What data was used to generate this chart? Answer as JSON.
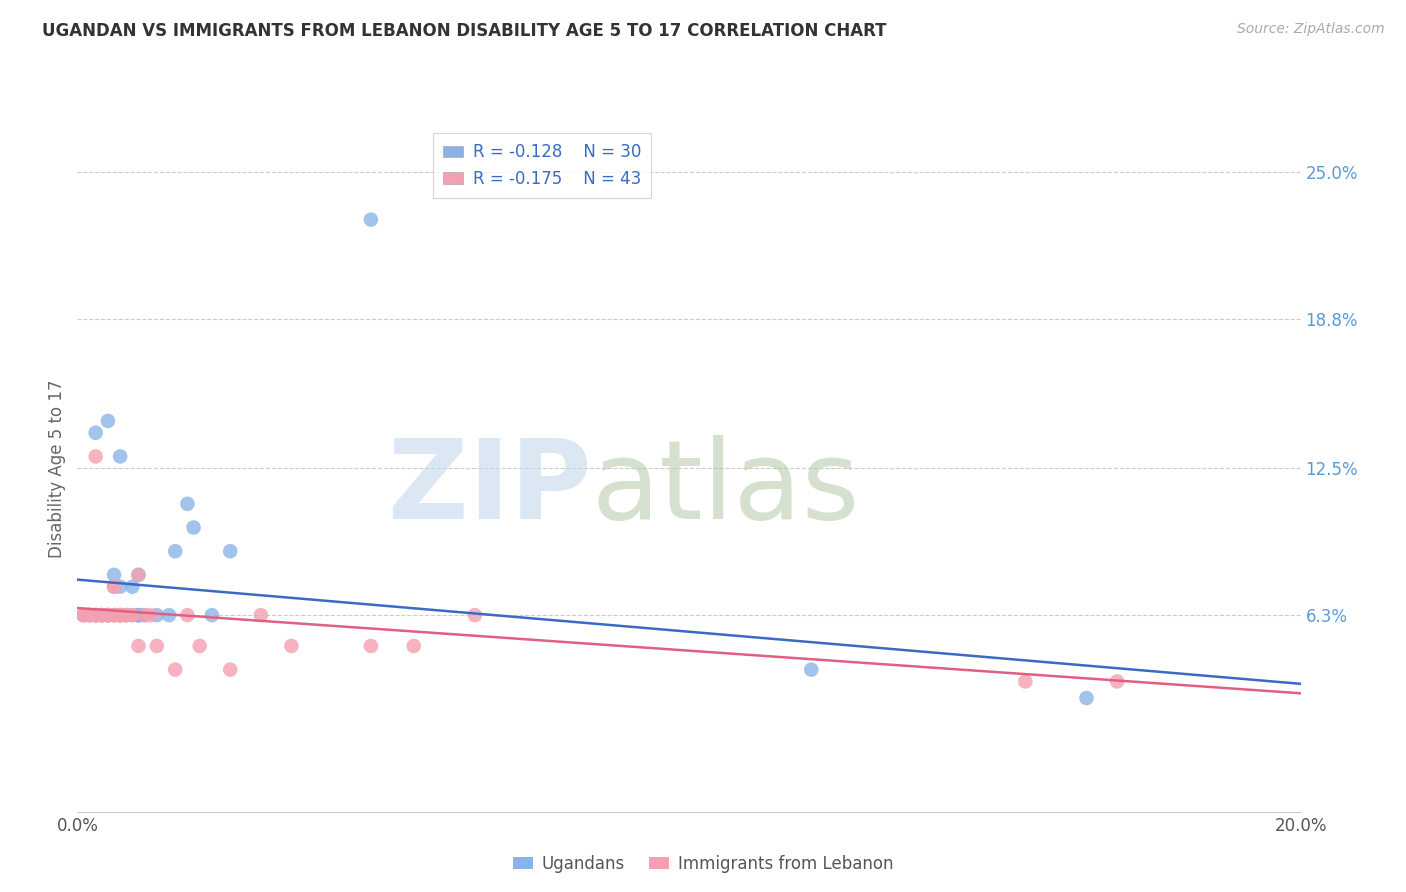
{
  "title": "UGANDAN VS IMMIGRANTS FROM LEBANON DISABILITY AGE 5 TO 17 CORRELATION CHART",
  "source": "Source: ZipAtlas.com",
  "ylabel_label": "Disability Age 5 to 17",
  "right_ytick_labels": [
    "25.0%",
    "18.8%",
    "12.5%",
    "6.3%"
  ],
  "right_ytick_values": [
    0.25,
    0.188,
    0.125,
    0.063
  ],
  "xmin": 0.0,
  "xmax": 0.2,
  "ymin": -0.02,
  "ymax": 0.27,
  "ugandan_R": "-0.128",
  "ugandan_N": "30",
  "lebanon_R": "-0.175",
  "lebanon_N": "43",
  "ugandan_color": "#8ab4e8",
  "lebanon_color": "#f4a0b0",
  "ugandan_line_color": "#3a6bc4",
  "lebanon_line_color": "#e06080",
  "ugandan_x": [
    0.001,
    0.002,
    0.003,
    0.003,
    0.004,
    0.005,
    0.005,
    0.006,
    0.006,
    0.007,
    0.007,
    0.007,
    0.008,
    0.009,
    0.01,
    0.01,
    0.01,
    0.01,
    0.011,
    0.013,
    0.015,
    0.016,
    0.018,
    0.019,
    0.022,
    0.025,
    0.048,
    0.12,
    0.165,
    0.003
  ],
  "ugandan_y": [
    0.063,
    0.063,
    0.063,
    0.14,
    0.063,
    0.145,
    0.063,
    0.08,
    0.063,
    0.13,
    0.075,
    0.063,
    0.063,
    0.075,
    0.063,
    0.063,
    0.063,
    0.08,
    0.063,
    0.063,
    0.063,
    0.09,
    0.11,
    0.1,
    0.063,
    0.09,
    0.23,
    0.04,
    0.028,
    0.063
  ],
  "lebanon_x": [
    0.001,
    0.001,
    0.002,
    0.002,
    0.003,
    0.003,
    0.003,
    0.003,
    0.004,
    0.004,
    0.004,
    0.005,
    0.005,
    0.005,
    0.005,
    0.006,
    0.006,
    0.006,
    0.006,
    0.007,
    0.007,
    0.007,
    0.007,
    0.008,
    0.008,
    0.009,
    0.009,
    0.01,
    0.01,
    0.011,
    0.012,
    0.013,
    0.016,
    0.018,
    0.02,
    0.025,
    0.03,
    0.035,
    0.048,
    0.055,
    0.065,
    0.155,
    0.17
  ],
  "lebanon_y": [
    0.063,
    0.063,
    0.063,
    0.063,
    0.063,
    0.063,
    0.063,
    0.13,
    0.063,
    0.063,
    0.063,
    0.063,
    0.063,
    0.063,
    0.063,
    0.075,
    0.075,
    0.063,
    0.063,
    0.063,
    0.063,
    0.063,
    0.063,
    0.063,
    0.063,
    0.063,
    0.063,
    0.08,
    0.05,
    0.063,
    0.063,
    0.05,
    0.04,
    0.063,
    0.05,
    0.04,
    0.063,
    0.05,
    0.05,
    0.05,
    0.063,
    0.035,
    0.035
  ],
  "ugandan_line_x0": 0.0,
  "ugandan_line_x1": 0.2,
  "ugandan_line_y0": 0.078,
  "ugandan_line_y1": 0.034,
  "lebanon_line_x0": 0.0,
  "lebanon_line_x1": 0.2,
  "lebanon_line_y0": 0.066,
  "lebanon_line_y1": 0.03
}
